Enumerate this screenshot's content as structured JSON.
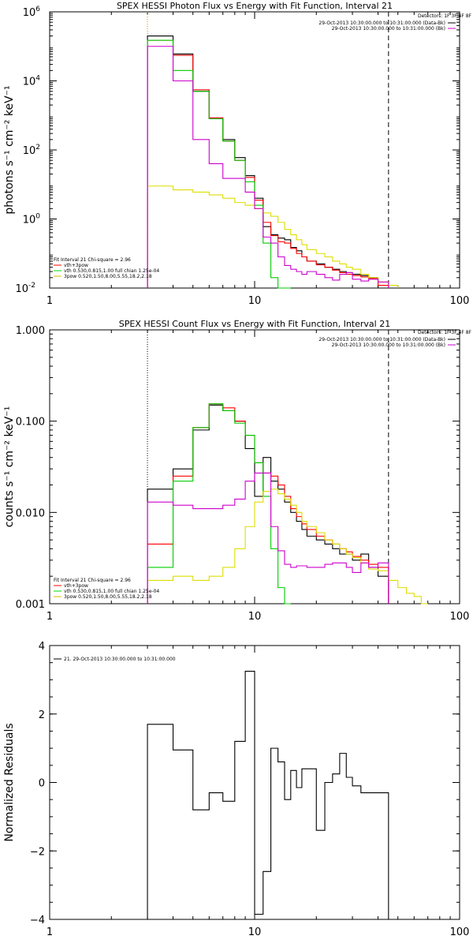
{
  "chart_data": [
    {
      "type": "line",
      "title": "SPEX HESSI Photon Flux vs Energy with Fit Function, Interval 21",
      "ylabel": "photons s⁻¹ cm⁻² keV⁻¹",
      "xscale": "log",
      "yscale": "log",
      "xlim": [
        1,
        100
      ],
      "ylim": [
        0.01,
        1000000
      ],
      "x_ticks": [
        {
          "v": 1,
          "label": "1"
        },
        {
          "v": 10,
          "label": "10"
        },
        {
          "v": 100,
          "label": "100"
        }
      ],
      "y_ticks": [
        {
          "v": 0.01,
          "base": "10",
          "exp": "-2"
        },
        {
          "v": 1,
          "base": "10",
          "exp": "0"
        },
        {
          "v": 100,
          "base": "10",
          "exp": "2"
        },
        {
          "v": 10000,
          "base": "10",
          "exp": "4"
        },
        {
          "v": 1000000,
          "base": "10",
          "exp": "6"
        }
      ],
      "vlines": [
        {
          "x": 3,
          "style": "dotted",
          "color": "#000000"
        },
        {
          "x": 3,
          "style": "dotted",
          "color": "#ccaa00"
        },
        {
          "x": 45,
          "style": "dashed",
          "color": "#000000"
        }
      ],
      "legend_right": {
        "header": "Detectors: 1F 3F 4F 8F",
        "entries": [
          {
            "label": "29-Oct-2013 10:30:00.000 to 10:31:00.000 (Data-Bk)",
            "color": "#000000"
          },
          {
            "label": "29-Oct-2013 10:30:00.000 to 10:31:00.000 (Bk)",
            "color": "#cc00cc"
          }
        ]
      },
      "legend_left": {
        "header": "Fit Interval 21   Chi-square = 2.96",
        "entries": [
          {
            "label": "vth+3pow",
            "color": "#ff0000"
          },
          {
            "label": "vth 0.530,0.815,1.00  full chian 1.25e-04",
            "color": "#00dd00"
          },
          {
            "label": "3pow 0.520,1.50,8.00,5.55,18.2,2.18",
            "color": "#ddbb00"
          }
        ]
      },
      "edges": [
        3,
        4,
        5,
        6,
        7,
        8,
        9,
        10,
        11,
        12,
        13,
        14,
        15,
        16,
        17,
        18,
        20,
        22,
        24,
        26,
        28,
        30,
        33,
        36,
        40,
        45,
        50
      ],
      "series": [
        {
          "color": "#000000",
          "values": [
            200000,
            60000,
            5000,
            800,
            200,
            60,
            18,
            4,
            0.6,
            0.35,
            0.28,
            0.25,
            0.15,
            0.12,
            0.08,
            0.06,
            0.05,
            0.04,
            0.035,
            0.03,
            0.028,
            0.025,
            0.023,
            0.02,
            0.01
          ]
        },
        {
          "color": "#ff0000",
          "values": [
            150000,
            55000,
            5500,
            850,
            180,
            50,
            16,
            3.5,
            0.8,
            0.33,
            0.22,
            0.2,
            0.14,
            0.1,
            0.08,
            0.06,
            0.047,
            0.04,
            0.033,
            0.028,
            0.025,
            0.023,
            0.021,
            0.019,
            0.012
          ]
        },
        {
          "color": "#00cc00",
          "values": [
            150000,
            20000,
            5000,
            800,
            180,
            50,
            12,
            2.5,
            0.2,
            0.02,
            0.01,
            0.005
          ]
        },
        {
          "color": "#dddd00",
          "values": [
            9,
            7,
            6,
            5,
            4,
            3,
            2.5,
            2,
            1.5,
            1.2,
            0.8,
            0.5,
            0.35,
            0.25,
            0.18,
            0.13,
            0.1,
            0.08,
            0.06,
            0.05,
            0.04,
            0.035,
            0.025,
            0.02,
            0.015,
            0.012
          ]
        },
        {
          "color": "#cc00cc",
          "values": [
            100000,
            10000,
            200,
            40,
            15,
            15,
            6,
            2,
            0.3,
            0.2,
            0.08,
            0.045,
            0.035,
            0.03,
            0.025,
            0.03,
            0.025,
            0.02,
            0.017,
            0.025,
            0.028,
            0.018,
            0.016,
            0.018,
            0.015
          ]
        }
      ]
    },
    {
      "type": "line",
      "title": "SPEX HESSI Count Flux vs Energy with Fit Function, Interval 21",
      "ylabel": "counts s⁻¹ cm⁻² keV⁻¹",
      "xscale": "log",
      "yscale": "log",
      "xlim": [
        1,
        100
      ],
      "ylim": [
        0.001,
        1
      ],
      "x_ticks": [
        {
          "v": 1,
          "label": "1"
        },
        {
          "v": 10,
          "label": "10"
        },
        {
          "v": 100,
          "label": "100"
        }
      ],
      "y_ticks": [
        {
          "v": 0.001,
          "label": "0.001"
        },
        {
          "v": 0.01,
          "label": "0.010"
        },
        {
          "v": 0.1,
          "label": "0.100"
        },
        {
          "v": 1,
          "label": "1.000"
        }
      ],
      "vlines": [
        {
          "x": 3,
          "style": "dotted",
          "color": "#000000"
        },
        {
          "x": 45,
          "style": "dashed",
          "color": "#000000"
        }
      ],
      "legend_right": {
        "header": "Detectors: 1F 3F 4F 8F",
        "entries": [
          {
            "label": "29-Oct-2013 10:30:00.000 to 10:31:00.000 (Data-Bk)",
            "color": "#000000"
          },
          {
            "label": "29-Oct-2013 10:30:00.000 to 10:31:00.000 (Bk)",
            "color": "#cc00cc"
          }
        ]
      },
      "legend_left": {
        "header": "Fit Interval 21   Chi-square = 2.96",
        "entries": [
          {
            "label": "vth+3pow",
            "color": "#ff0000"
          },
          {
            "label": "vth 0.530,0.815,1.00  full chian 1.25e-04",
            "color": "#00dd00"
          },
          {
            "label": "3pow 0.520,1.50,8.00,5.55,18.2,2.18",
            "color": "#ddbb00"
          }
        ]
      },
      "edges": [
        3,
        4,
        5,
        6,
        7,
        8,
        9,
        10,
        11,
        12,
        13,
        14,
        15,
        16,
        17,
        18,
        20,
        22,
        24,
        26,
        28,
        30,
        33,
        36,
        40,
        45,
        50,
        55,
        60,
        65,
        70
      ],
      "series": [
        {
          "color": "#000000",
          "values": [
            0.018,
            0.03,
            0.08,
            0.15,
            0.13,
            0.1,
            0.05,
            0.015,
            0.04,
            0.022,
            0.018,
            0.013,
            0.01,
            0.008,
            0.0065,
            0.0055,
            0.005,
            0.0045,
            0.004,
            0.0035,
            0.0035,
            0.003,
            0.0035,
            0.0025,
            0.002
          ]
        },
        {
          "color": "#ff0000",
          "values": [
            0.0045,
            0.025,
            0.085,
            0.155,
            0.14,
            0.1,
            0.07,
            0.035,
            0.027,
            0.025,
            0.02,
            0.015,
            0.011,
            0.009,
            0.0075,
            0.0065,
            0.0055,
            0.005,
            0.0045,
            0.004,
            0.0037,
            0.0033,
            0.003,
            0.0027,
            0.0025
          ]
        },
        {
          "color": "#00cc00",
          "values": [
            0.0025,
            0.022,
            0.085,
            0.155,
            0.13,
            0.095,
            0.07,
            0.035,
            0.015,
            0.004,
            0.0015,
            0.0008
          ]
        },
        {
          "color": "#dddd00",
          "values": [
            0.0018,
            0.002,
            0.0018,
            0.002,
            0.0025,
            0.004,
            0.007,
            0.013,
            0.017,
            0.018,
            0.016,
            0.014,
            0.012,
            0.01,
            0.008,
            0.007,
            0.006,
            0.005,
            0.0045,
            0.004,
            0.0035,
            0.0032,
            0.0028,
            0.0024,
            0.0023,
            0.0018,
            0.0015,
            0.0013,
            0.0012,
            0.001
          ]
        },
        {
          "color": "#cc00cc",
          "values": [
            0.013,
            0.012,
            0.011,
            0.011,
            0.012,
            0.014,
            0.022,
            0.027,
            0.027,
            0.007,
            0.0038,
            0.0027,
            0.0025,
            0.0026,
            0.0026,
            0.0025,
            0.0025,
            0.0027,
            0.0028,
            0.0028,
            0.0025,
            0.0022,
            0.0028,
            0.0025,
            0.0028
          ]
        }
      ]
    },
    {
      "type": "line",
      "title": "",
      "ylabel": "Normalized Residuals",
      "xscale": "log",
      "yscale": "linear",
      "xlim": [
        1,
        100
      ],
      "ylim": [
        -4,
        4
      ],
      "x_ticks": [
        {
          "v": 1,
          "label": "1"
        },
        {
          "v": 10,
          "label": "10"
        },
        {
          "v": 100,
          "label": "100"
        }
      ],
      "y_ticks": [
        {
          "v": -4,
          "label": "−4"
        },
        {
          "v": -2,
          "label": "−2"
        },
        {
          "v": 0,
          "label": "0"
        },
        {
          "v": 2,
          "label": "2"
        },
        {
          "v": 4,
          "label": "4"
        }
      ],
      "vlines": [],
      "legend_left": {
        "header": "",
        "entries": [
          {
            "label": "21. 29-Oct-2013 10:30:00.000 to 10:31:00.000",
            "color": "#000000"
          }
        ]
      },
      "edges": [
        3,
        4,
        5,
        6,
        7,
        8,
        9,
        10,
        11,
        12,
        13,
        14,
        15,
        16,
        17,
        18,
        20,
        22,
        24,
        26,
        28,
        30,
        33,
        36,
        40,
        45
      ],
      "series": [
        {
          "color": "#000000",
          "values": [
            1.7,
            0.95,
            -0.8,
            -0.3,
            -0.55,
            1.2,
            3.25,
            -3.85,
            -2.6,
            1.0,
            0.6,
            -0.5,
            0.35,
            -0.15,
            0.4,
            0.4,
            -1.4,
            0.0,
            0.25,
            0.85,
            0.15,
            -0.1,
            -0.3,
            -0.3,
            -0.3
          ]
        }
      ]
    }
  ]
}
